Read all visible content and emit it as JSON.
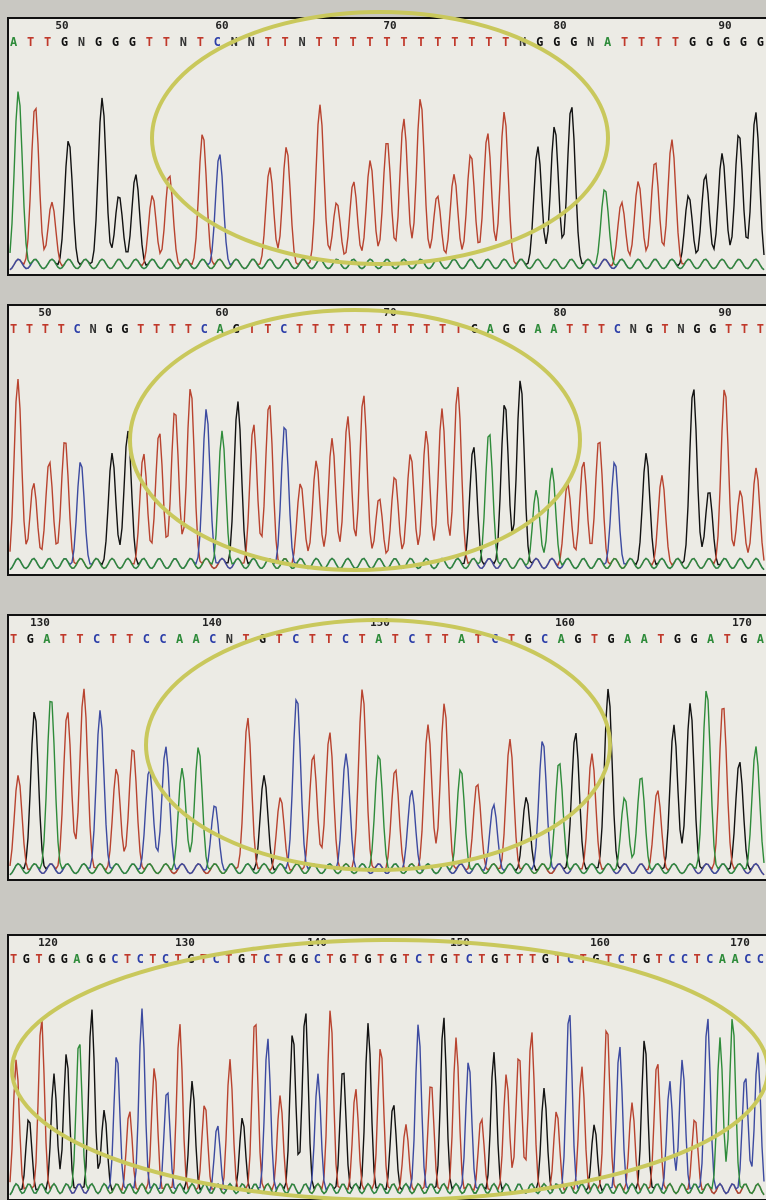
{
  "panels": [
    {
      "positions": [
        50,
        60,
        70,
        80,
        90
      ],
      "sequence": "ATTGNGGGTTNTCNNTTNTTTTTTTTTTTTNGGGNATTTTGGGGG"
    },
    {
      "positions": [
        50,
        60,
        70,
        80,
        90
      ],
      "sequence": "TTTTCNGGTTTTCAGTTCTTTTTTTTTTTGAGGAATTTCNGTNGGTTT"
    },
    {
      "positions": [
        130,
        140,
        150,
        160,
        170
      ],
      "sequence": "TGATTCTTCCAACNTGTCTTCTATCTTATCTGCAGTGAATGGATGA"
    },
    {
      "positions": [
        120,
        130,
        140,
        150,
        160,
        170
      ],
      "sequence": "TGTGGAGGCTCTCTGTCTGTCTGGCTGTGTGTCTGTCTGTTTGTCTGTCTGTCCTCAACC"
    }
  ]
}
